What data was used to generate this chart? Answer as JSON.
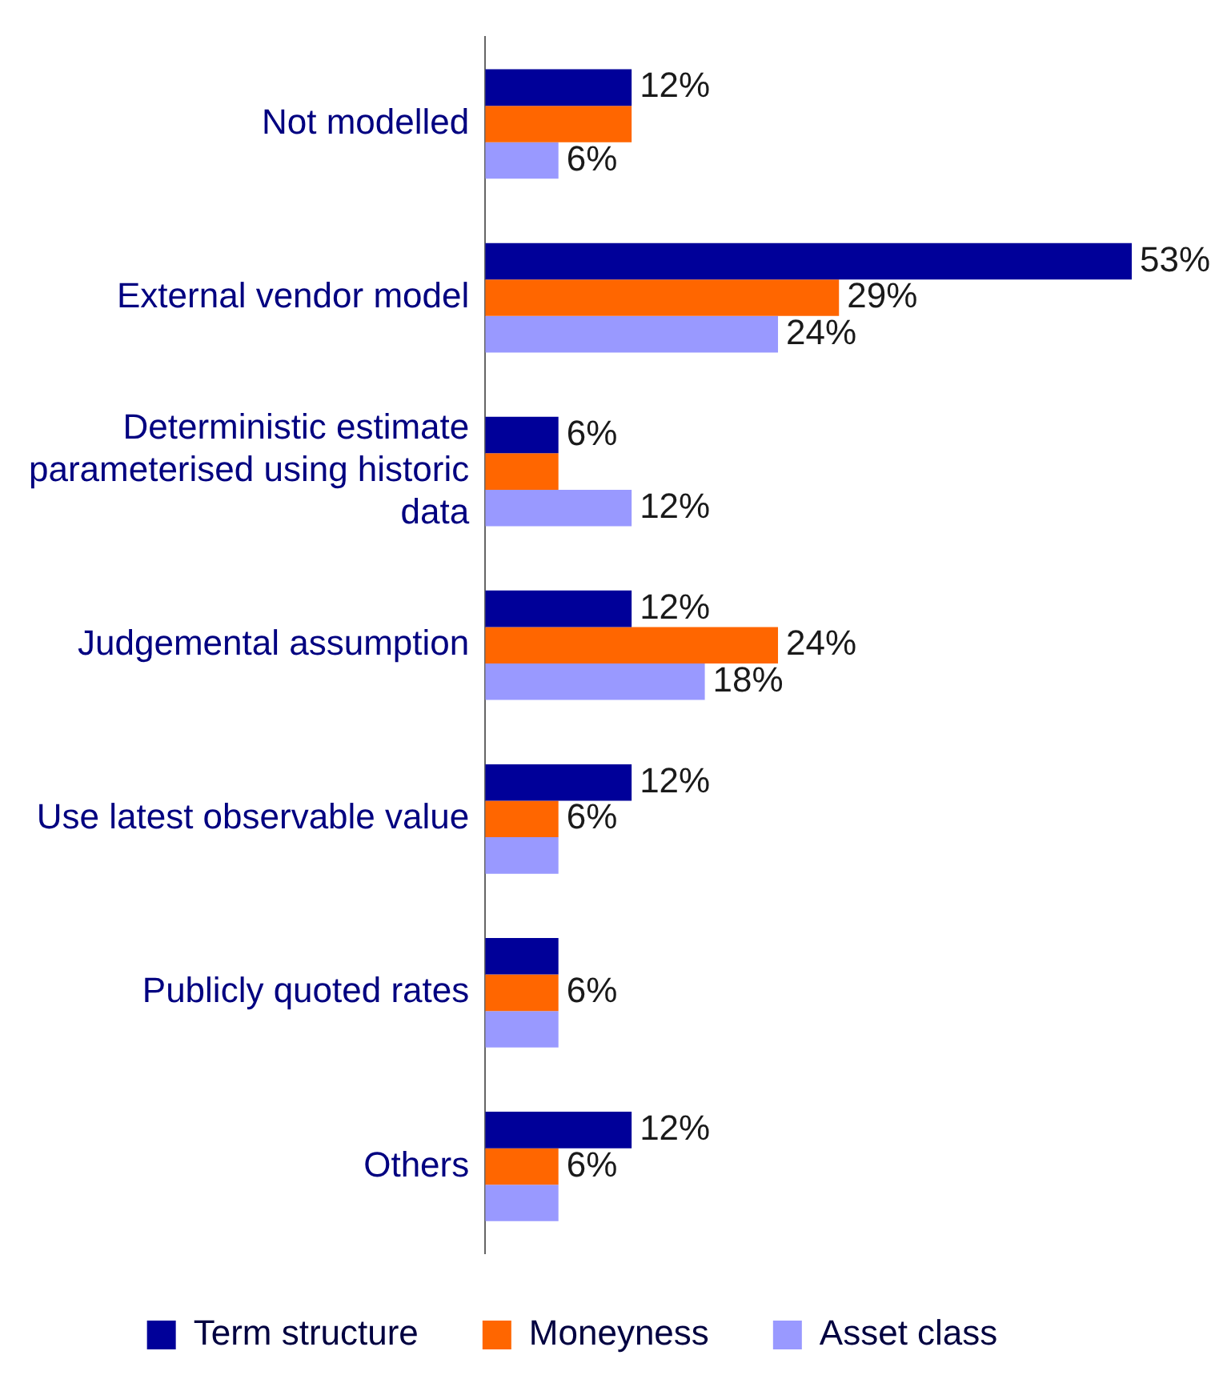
{
  "chart_data": {
    "type": "bar",
    "orientation": "horizontal",
    "legend": "bottom",
    "categories": [
      "Not modelled",
      "External vendor model",
      "Deterministic estimate parameterised using historic data",
      "Judgemental assumption",
      "Use latest observable value",
      "Publicly quoted rates",
      "Others"
    ],
    "series": [
      {
        "name": "Term structure",
        "color": "#000099",
        "values": [
          12,
          53,
          6,
          12,
          12,
          6,
          12
        ],
        "value_labels": [
          "12%",
          "53%",
          "6%",
          "12%",
          "12%",
          null,
          "12%"
        ]
      },
      {
        "name": "Moneyness",
        "color": "#ff6600",
        "values": [
          12,
          29,
          6,
          24,
          6,
          6,
          6
        ],
        "value_labels": [
          null,
          "29%",
          null,
          "24%",
          "6%",
          "6%",
          "6%"
        ]
      },
      {
        "name": "Asset class",
        "color": "#9999ff",
        "values": [
          6,
          24,
          12,
          18,
          6,
          6,
          6
        ],
        "value_labels": [
          "6%",
          "24%",
          "12%",
          "18%",
          null,
          null,
          null
        ]
      }
    ]
  }
}
